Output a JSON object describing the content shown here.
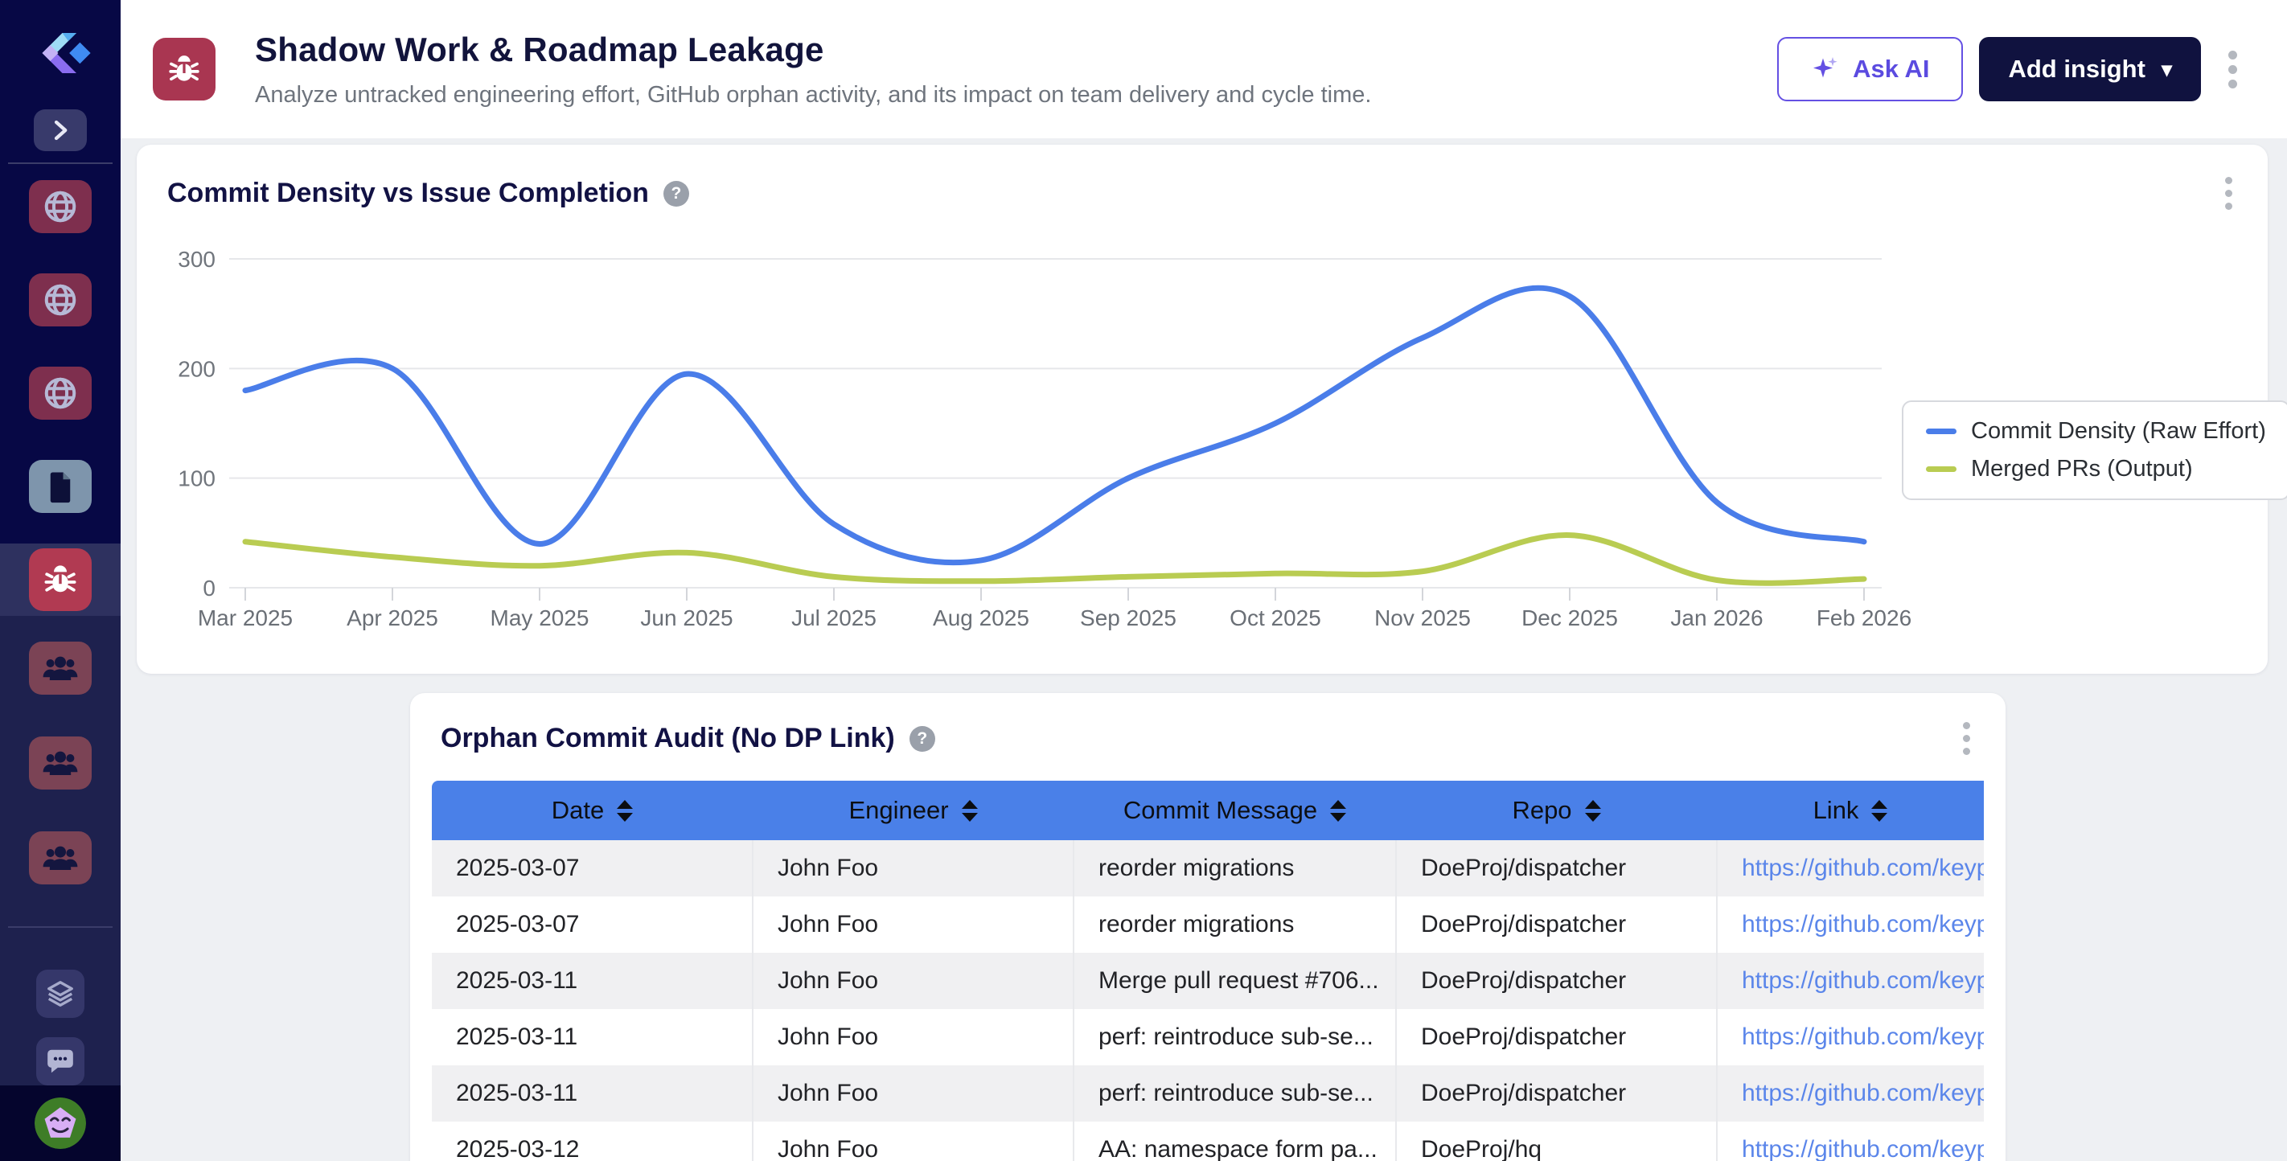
{
  "colors": {
    "accent_purple": "#6450e3",
    "navy": "#10123f",
    "chart_blue": "#4a7de9",
    "chart_green": "#b9cc52",
    "table_header_blue": "#4a80e8",
    "link_blue": "#5b86ea",
    "sidebar_bg": "#070845",
    "active_tile_red": "#b13a52",
    "tile_maroon": "#7e2f4e"
  },
  "icons": {
    "help_glyph": "?",
    "caret_glyph": "▾"
  },
  "sidebar": {
    "items": [
      "globe-icon",
      "globe-icon",
      "globe-icon",
      "document-icon",
      "bug-icon",
      "users-icon",
      "users-icon",
      "users-icon",
      "layers-icon",
      "chat-icon"
    ],
    "active_item": "bug-icon"
  },
  "header": {
    "icon": "bug-icon",
    "title": "Shadow Work & Roadmap Leakage",
    "subtitle": "Analyze untracked engineering effort, GitHub orphan activity, and its impact on team delivery and cycle time.",
    "ask_ai_label": "Ask AI",
    "add_insight_label": "Add insight"
  },
  "chart_card": {
    "title": "Commit Density vs Issue Completion"
  },
  "chart_data": {
    "type": "line",
    "x": [
      "Mar 2025",
      "Apr 2025",
      "May 2025",
      "Jun 2025",
      "Jul 2025",
      "Aug 2025",
      "Sep 2025",
      "Oct 2025",
      "Nov 2025",
      "Dec 2025",
      "Jan 2026",
      "Feb 2026"
    ],
    "series": [
      {
        "name": "Commit Density (Raw Effort)",
        "color": "#4a7de9",
        "values": [
          180,
          200,
          40,
          195,
          58,
          25,
          100,
          150,
          228,
          266,
          78,
          42
        ]
      },
      {
        "name": "Merged PRs (Output)",
        "color": "#b9cc52",
        "values": [
          42,
          28,
          20,
          32,
          10,
          6,
          10,
          13,
          15,
          48,
          7,
          8
        ]
      }
    ],
    "ylim": [
      0,
      300
    ],
    "yticks": [
      0,
      100,
      200,
      300
    ],
    "grid": true,
    "legend_position": "right"
  },
  "table_card": {
    "title": "Orphan Commit Audit (No DP Link)",
    "columns": [
      "Date",
      "Engineer",
      "Commit Message",
      "Repo",
      "Link"
    ],
    "rows": [
      [
        "2025-03-07",
        "John Foo",
        "reorder migrations",
        "DoeProj/dispatcher",
        "https://github.com/keyp"
      ],
      [
        "2025-03-07",
        "John Foo",
        "reorder migrations",
        "DoeProj/dispatcher",
        "https://github.com/keyp"
      ],
      [
        "2025-03-11",
        "John Foo",
        "Merge pull request #706...",
        "DoeProj/dispatcher",
        "https://github.com/keyp"
      ],
      [
        "2025-03-11",
        "John Foo",
        "perf: reintroduce sub-se...",
        "DoeProj/dispatcher",
        "https://github.com/keyp"
      ],
      [
        "2025-03-11",
        "John Foo",
        "perf: reintroduce sub-se...",
        "DoeProj/dispatcher",
        "https://github.com/keyp"
      ],
      [
        "2025-03-12",
        "John Foo",
        "AA: namespace form pa...",
        "DoeProj/hq",
        "https://github.com/keyp"
      ]
    ]
  }
}
